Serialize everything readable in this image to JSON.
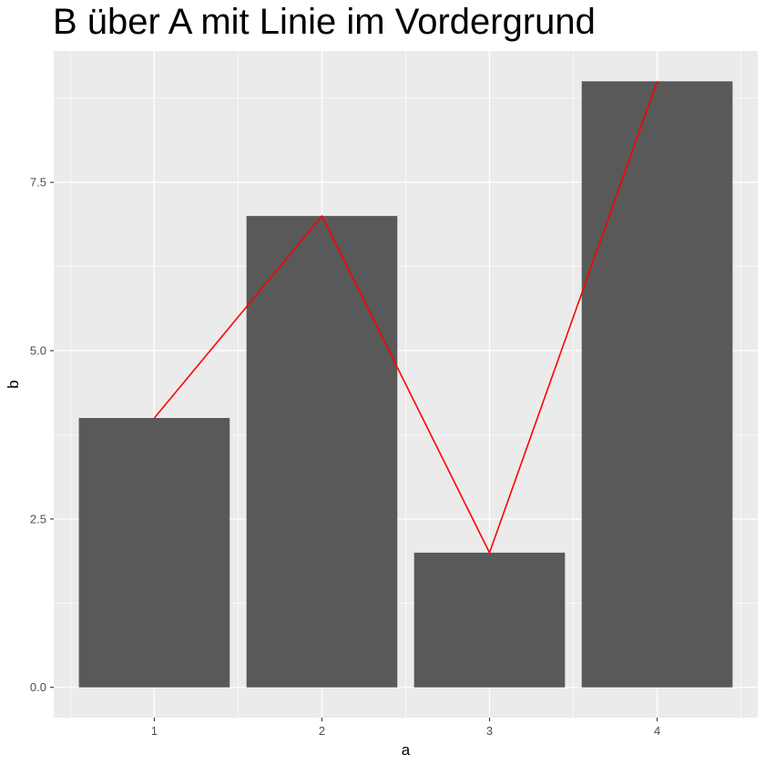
{
  "chart_data": {
    "type": "bar",
    "title": "B über A mit Linie im Vordergrund",
    "xlabel": "a",
    "ylabel": "b",
    "categories": [
      "1",
      "2",
      "3",
      "4"
    ],
    "values": [
      4,
      7,
      2,
      9
    ],
    "overlay_line": {
      "color": "#ff0000",
      "values": [
        4,
        7,
        2,
        9
      ]
    },
    "y_ticks": [
      0.0,
      2.5,
      5.0,
      7.5
    ],
    "y_tick_labels": [
      "0.0",
      "2.5",
      "5.0",
      "7.5"
    ],
    "ylim": [
      -0.45,
      9.45
    ],
    "xlim": [
      0.4,
      4.6
    ],
    "bar_color": "#595959",
    "panel_background": "#ebebeb",
    "grid_color": "#ffffff",
    "grid": true,
    "legend": "none"
  }
}
